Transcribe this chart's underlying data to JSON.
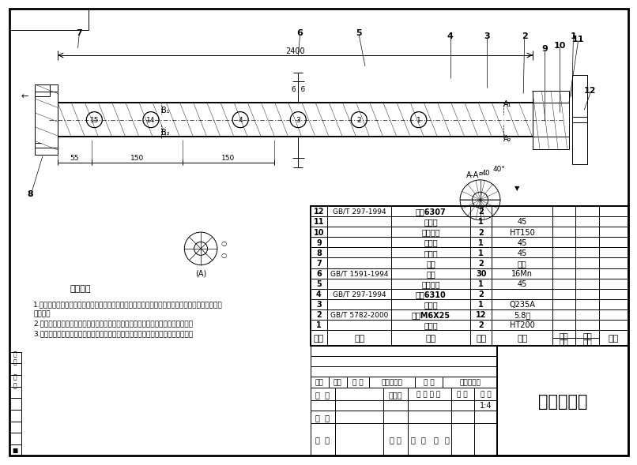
{
  "title": "旋耕刀刀轴",
  "scale": "1:4",
  "background": "#ffffff",
  "border_color": "#000000",
  "table_rows": [
    {
      "seq": "12",
      "code": "GB/T 297-1994",
      "name": "轴承6307",
      "qty": "2",
      "material": ""
    },
    {
      "seq": "11",
      "code": "",
      "name": "大齿轮",
      "qty": "1",
      "material": "45"
    },
    {
      "seq": "10",
      "code": "",
      "name": "轴承端盖",
      "qty": "2",
      "material": "HT150"
    },
    {
      "seq": "9",
      "code": "",
      "name": "花键轴",
      "qty": "1",
      "material": "45"
    },
    {
      "seq": "8",
      "code": "",
      "name": "传动轴",
      "qty": "1",
      "material": "45"
    },
    {
      "seq": "7",
      "code": "",
      "name": "油封",
      "qty": "2",
      "material": "橡胶"
    },
    {
      "seq": "6",
      "code": "GB/T 1591-1994",
      "name": "刀座",
      "qty": "30",
      "material": "16Mn"
    },
    {
      "seq": "5",
      "code": "",
      "name": "旋耕刀轴",
      "qty": "1",
      "material": "45"
    },
    {
      "seq": "4",
      "code": "GB/T 297-1994",
      "name": "轴承6310",
      "qty": "2",
      "material": ""
    },
    {
      "seq": "3",
      "code": "",
      "name": "联轴器",
      "qty": "1",
      "material": "Q235A"
    },
    {
      "seq": "2",
      "code": "GB/T 5782-2000",
      "name": "螺栓M6X25",
      "qty": "12",
      "material": "5.8级"
    },
    {
      "seq": "1",
      "code": "",
      "name": "支撑板",
      "qty": "2",
      "material": "HT200"
    }
  ],
  "tech_title": "技术要求",
  "tech_notes": [
    "1.装配前所有的管子应去除管端飞边、毛刺并倒角。用压缩空气或其他方法清理管子内壁附着的杂物",
    "和浮锈。",
    "2.装配时，对管夹、支座、法兰及接头等用螺纹连接固定的部位要拧紧，防止松动。",
    "3.装配前应对零、部件的主要配合尺寸，特别是过盈配合尺寸及相关精度进行复查。"
  ],
  "dim_2400": "2400",
  "note_6_6": "6  6"
}
